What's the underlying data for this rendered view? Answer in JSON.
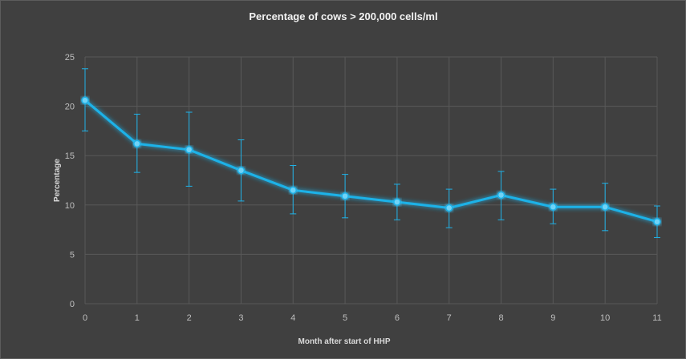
{
  "chart_data": {
    "type": "line",
    "title": "Percentage of cows > 200,000 cells/ml",
    "xlabel": "Month after start of HHP",
    "ylabel": "Percentage",
    "x": [
      0,
      1,
      2,
      3,
      4,
      5,
      6,
      7,
      8,
      9,
      10,
      11
    ],
    "x_tick_labels": [
      "0",
      "1",
      "2",
      "3",
      "4",
      "5",
      "6",
      "7",
      "8",
      "9",
      "10",
      "11"
    ],
    "y_tick_labels": [
      "0",
      "5",
      "10",
      "15",
      "20",
      "25"
    ],
    "ylim": [
      0,
      25
    ],
    "grid": true,
    "series": [
      {
        "values": [
          20.6,
          16.2,
          15.6,
          13.5,
          11.5,
          10.9,
          10.3,
          9.7,
          11.0,
          9.8,
          9.8,
          8.3
        ],
        "error_upper": [
          23.8,
          19.2,
          19.4,
          16.6,
          14.0,
          13.1,
          12.1,
          11.6,
          13.4,
          11.6,
          12.2,
          9.9
        ],
        "error_lower": [
          17.5,
          13.3,
          11.9,
          10.4,
          9.1,
          8.7,
          8.5,
          7.7,
          8.5,
          8.1,
          7.4,
          6.7
        ],
        "color": "#1fb2e8"
      }
    ],
    "colors": {
      "background": "#404040",
      "grid": "#595959",
      "line": "#1fb2e8",
      "text": "#d9d9d9"
    }
  }
}
